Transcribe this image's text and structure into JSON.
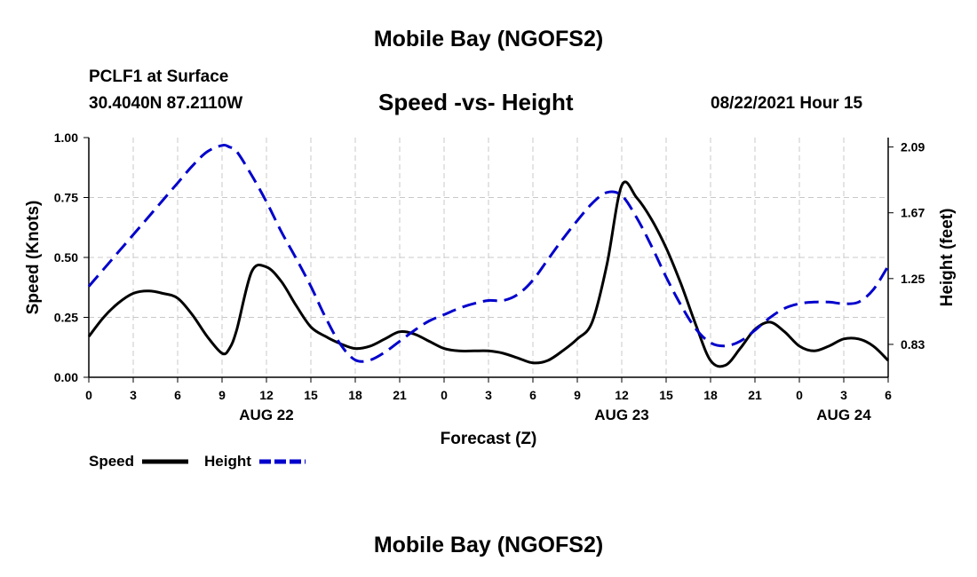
{
  "header": {
    "title": "Mobile Bay (NGOFS2)",
    "station": "PCLF1 at Surface",
    "coords": "30.4040N  87.2110W",
    "datetime": "08/22/2021 Hour 15"
  },
  "footer": {
    "title": "Mobile Bay (NGOFS2)"
  },
  "chart_data": {
    "type": "line",
    "title": "Speed -vs- Height",
    "xlabel": "Forecast (Z)",
    "ylabel": "Speed (Knots)",
    "y2label": "Height (feet)",
    "x": [
      0,
      1,
      2,
      3,
      4,
      5,
      6,
      7,
      8,
      9,
      9.5,
      10,
      11,
      12,
      13,
      14,
      15,
      16,
      17,
      18,
      19,
      20,
      21,
      22,
      23,
      24,
      25,
      26,
      27,
      28,
      29,
      30,
      31,
      32,
      33,
      34,
      35,
      36,
      37,
      38,
      39,
      40,
      41,
      42,
      43,
      44,
      45,
      46,
      47,
      48,
      49,
      50,
      51,
      52,
      53,
      54
    ],
    "xlim": [
      0,
      54
    ],
    "x_ticks": [
      {
        "x": 0,
        "label": "0"
      },
      {
        "x": 3,
        "label": "3"
      },
      {
        "x": 6,
        "label": "6"
      },
      {
        "x": 9,
        "label": "9"
      },
      {
        "x": 12,
        "label": "12"
      },
      {
        "x": 15,
        "label": "15"
      },
      {
        "x": 18,
        "label": "18"
      },
      {
        "x": 21,
        "label": "21"
      },
      {
        "x": 24,
        "label": "0"
      },
      {
        "x": 27,
        "label": "3"
      },
      {
        "x": 30,
        "label": "6"
      },
      {
        "x": 33,
        "label": "9"
      },
      {
        "x": 36,
        "label": "12"
      },
      {
        "x": 39,
        "label": "15"
      },
      {
        "x": 42,
        "label": "18"
      },
      {
        "x": 45,
        "label": "21"
      },
      {
        "x": 48,
        "label": "0"
      },
      {
        "x": 51,
        "label": "3"
      },
      {
        "x": 54,
        "label": "6"
      }
    ],
    "date_labels": [
      {
        "x": 12,
        "label": "AUG 22"
      },
      {
        "x": 36,
        "label": "AUG 23"
      },
      {
        "x": 51,
        "label": "AUG 24"
      }
    ],
    "ylim": [
      0,
      1
    ],
    "y_ticks": [
      "0.00",
      "0.25",
      "0.50",
      "0.75",
      "1.00"
    ],
    "y2lim": [
      0.62,
      2.15
    ],
    "y2_ticks": [
      {
        "value": 0.83,
        "label": "0.83"
      },
      {
        "value": 1.25,
        "label": "1.25"
      },
      {
        "value": 1.67,
        "label": "1.67"
      },
      {
        "value": 2.09,
        "label": "2.09"
      }
    ],
    "grid": true,
    "legend_position": "bottom-left",
    "series": [
      {
        "name": "Speed",
        "axis": "left",
        "color": "#000000",
        "dash": "solid",
        "values": [
          0.17,
          0.25,
          0.31,
          0.35,
          0.36,
          0.35,
          0.33,
          0.26,
          0.17,
          0.1,
          0.12,
          0.2,
          0.44,
          0.46,
          0.4,
          0.3,
          0.21,
          0.17,
          0.14,
          0.12,
          0.13,
          0.16,
          0.19,
          0.18,
          0.15,
          0.12,
          0.11,
          0.11,
          0.11,
          0.1,
          0.08,
          0.06,
          0.07,
          0.11,
          0.16,
          0.23,
          0.47,
          0.8,
          0.75,
          0.66,
          0.54,
          0.39,
          0.22,
          0.07,
          0.05,
          0.12,
          0.2,
          0.23,
          0.19,
          0.13,
          0.11,
          0.13,
          0.16,
          0.16,
          0.13,
          0.07
        ]
      },
      {
        "name": "Height",
        "axis": "right",
        "color": "#0000cc",
        "dash": "dashed",
        "values": [
          1.2,
          1.31,
          1.42,
          1.53,
          1.64,
          1.75,
          1.86,
          1.97,
          2.06,
          2.1,
          2.09,
          2.06,
          1.91,
          1.74,
          1.55,
          1.38,
          1.2,
          1.0,
          0.83,
          0.73,
          0.73,
          0.78,
          0.85,
          0.92,
          0.98,
          1.02,
          1.06,
          1.09,
          1.11,
          1.11,
          1.15,
          1.24,
          1.37,
          1.5,
          1.62,
          1.73,
          1.8,
          1.78,
          1.64,
          1.46,
          1.26,
          1.08,
          0.93,
          0.84,
          0.82,
          0.85,
          0.92,
          1.0,
          1.06,
          1.09,
          1.1,
          1.1,
          1.09,
          1.1,
          1.18,
          1.33
        ]
      }
    ]
  }
}
